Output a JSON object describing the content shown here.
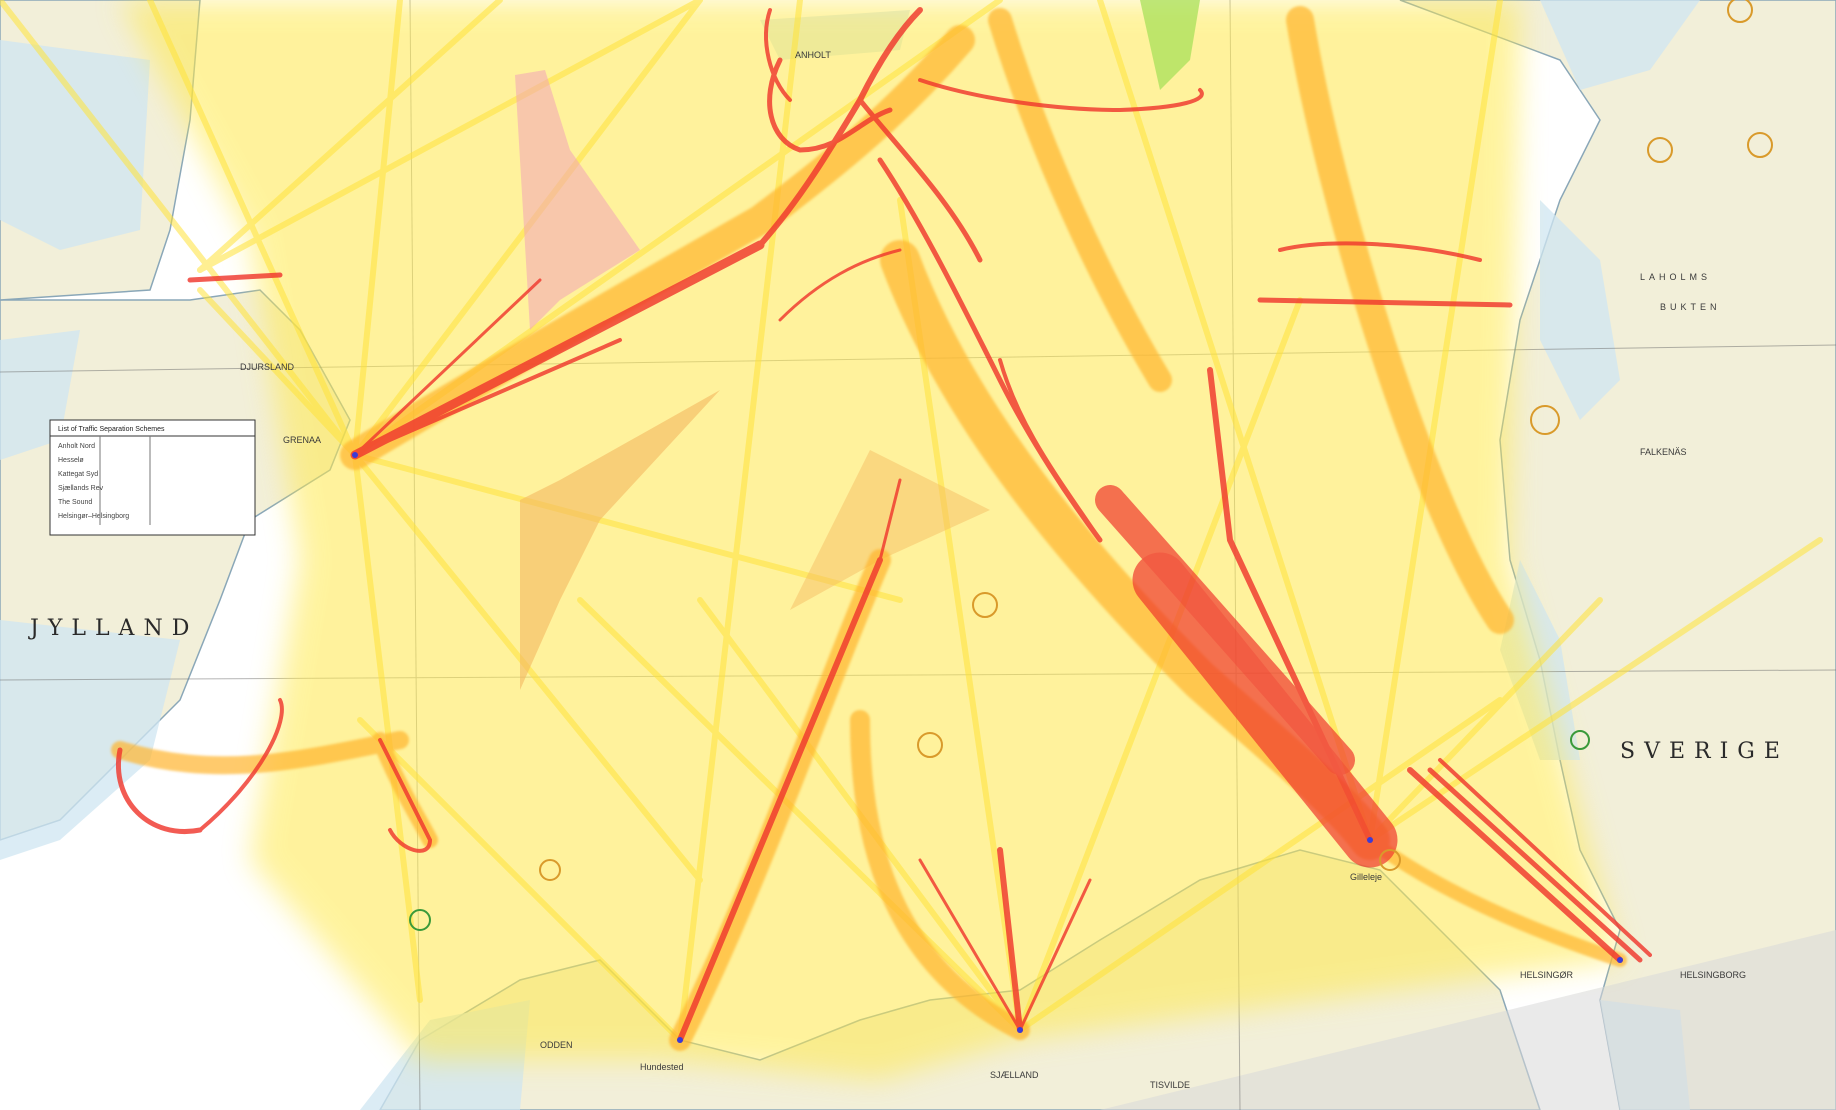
{
  "map": {
    "type": "nautical chart with AIS vessel traffic density overlay",
    "colors": {
      "land": "#f2efd9",
      "sea": "#ffffff",
      "shallow": "#cfe6f2",
      "traffic_low": "#ffe94d",
      "traffic_mid": "#ffb52e",
      "traffic_high": "#f0382e",
      "zone_pink": "#f2a4b8",
      "zone_orange": "#f4b860",
      "zone_green": "#a8e05a"
    }
  },
  "labels": {
    "jylland": "JYLLAND",
    "sverige": "SVERIGE",
    "grenaa": "GRENAA",
    "helsingor": "HELSINGØR",
    "helsingborg": "HELSINGBORG",
    "anholt": "ANHOLT",
    "laholm": "LAHOLMS",
    "bukten": "BUKTEN",
    "falkenaes": "FALKENÄS",
    "sjaelland": "SJÆLLAND",
    "odden": "ODDEN",
    "tisvilde": "TISVILDE",
    "gilleleje": "Gilleleje",
    "hundested": "Hundested",
    "djursland": "DJURSLAND"
  },
  "legend": {
    "title": "List of Traffic Separation Schemes",
    "rows": [
      "Anholt Nord",
      "Hesselø",
      "Kattegat Syd",
      "Sjællands Rev",
      "The Sound",
      "Helsingør–Helsingborg"
    ]
  }
}
